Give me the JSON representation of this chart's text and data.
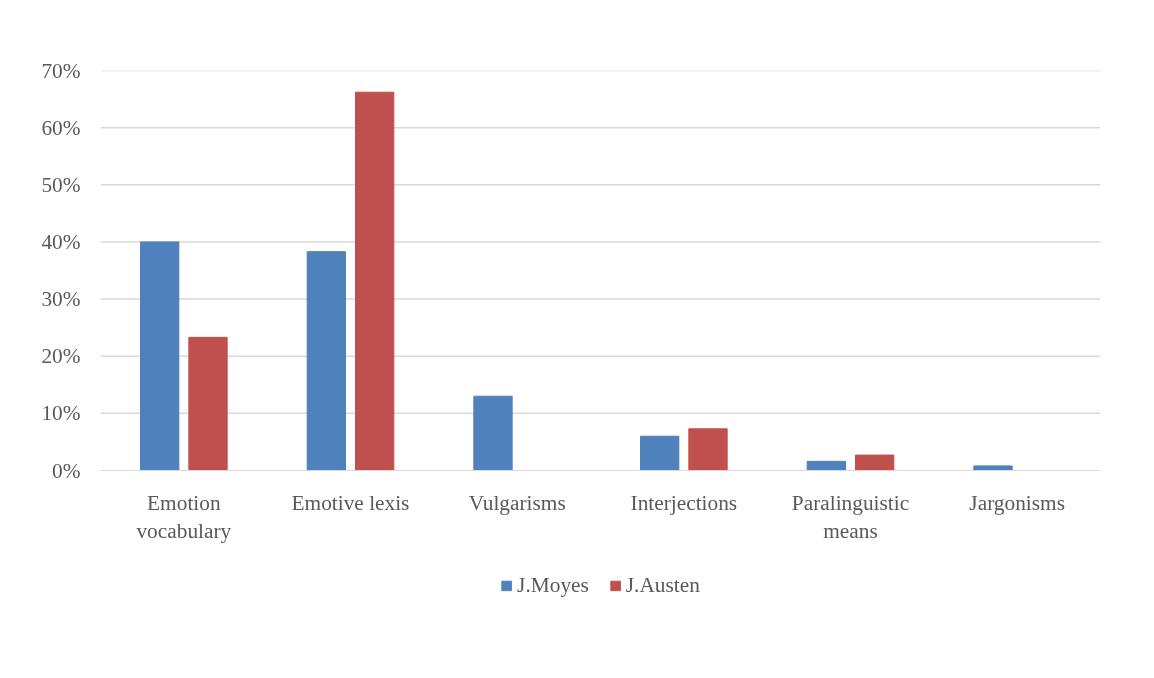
{
  "chart_data": {
    "type": "bar",
    "categories": [
      "Emotion vocabulary",
      "Emotive lexis",
      "Vulgarisms",
      "Interjections",
      "Paralinguistic means",
      "Jargonisms"
    ],
    "series": [
      {
        "name": "J.Moyes",
        "color": "#4f81bd",
        "values": [
          40,
          38.3,
          13,
          6,
          1.6,
          0.8
        ]
      },
      {
        "name": "J.Austen",
        "color": "#c0504d",
        "values": [
          23.3,
          66.2,
          0,
          7.3,
          2.7,
          0
        ]
      }
    ],
    "ylim": [
      0,
      70
    ],
    "yticks": [
      {
        "value": 0,
        "label": "0%"
      },
      {
        "value": 10,
        "label": "10%"
      },
      {
        "value": 20,
        "label": "20%"
      },
      {
        "value": 30,
        "label": "30%"
      },
      {
        "value": 40,
        "label": "40%"
      },
      {
        "value": 50,
        "label": "50%"
      },
      {
        "value": 60,
        "label": "60%"
      },
      {
        "value": 70,
        "label": "70%"
      }
    ],
    "grid": "y",
    "legend": "bottom"
  }
}
